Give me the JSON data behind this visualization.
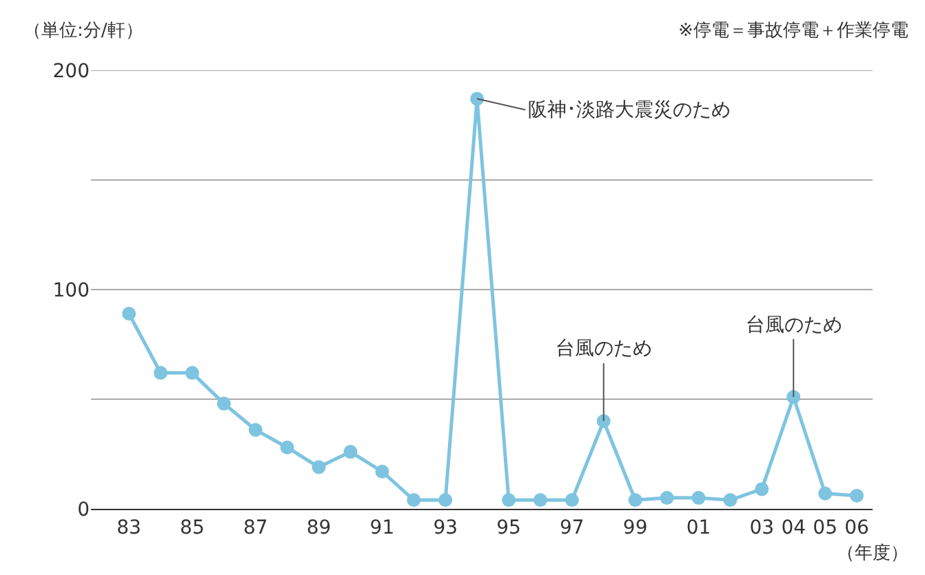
{
  "chart_data": {
    "type": "line",
    "ylabel": "（単位:分/軒）",
    "xlabel": "（年度）",
    "x": [
      1983,
      1984,
      1985,
      1986,
      1987,
      1988,
      1989,
      1990,
      1991,
      1992,
      1993,
      1994,
      1995,
      1996,
      1997,
      1998,
      1999,
      2000,
      2001,
      2002,
      2003,
      2004,
      2005,
      2006
    ],
    "series": [
      {
        "color": "#7ec4e0",
        "values": [
          89,
          62,
          62,
          48,
          36,
          28,
          19,
          26,
          17,
          4,
          4,
          187,
          4,
          4,
          4,
          40,
          4,
          5,
          5,
          4,
          9,
          51,
          7,
          6
        ]
      }
    ],
    "xlim": [
      1981.8,
      2006.5
    ],
    "xticks": [
      {
        "value": 1983,
        "label": "83"
      },
      {
        "value": 1985,
        "label": "85"
      },
      {
        "value": 1987,
        "label": "87"
      },
      {
        "value": 1989,
        "label": "89"
      },
      {
        "value": 1991,
        "label": "91"
      },
      {
        "value": 1993,
        "label": "93"
      },
      {
        "value": 1995,
        "label": "95"
      },
      {
        "value": 1997,
        "label": "97"
      },
      {
        "value": 1999,
        "label": "99"
      },
      {
        "value": 2001,
        "label": "01"
      },
      {
        "value": 2003,
        "label": "03"
      },
      {
        "value": 2004,
        "label": "04"
      },
      {
        "value": 2005,
        "label": "05"
      },
      {
        "value": 2006,
        "label": "06"
      }
    ],
    "ylim": [
      0,
      200
    ],
    "yticks": [
      0,
      {
        "value": 50,
        "label": null
      },
      100,
      {
        "value": 150,
        "label": null
      },
      200
    ],
    "grid": "y",
    "marker": "circle",
    "line_style": "solid",
    "annotations": [
      {
        "text": "阪神･淡路大震災のため",
        "x": 1994,
        "y": 187
      },
      {
        "text": "台風のため",
        "x": 1998,
        "y": 40
      },
      {
        "text": "台風のため",
        "x": 2004,
        "y": 51
      },
      "※停電＝事故停電＋作業停電"
    ]
  }
}
